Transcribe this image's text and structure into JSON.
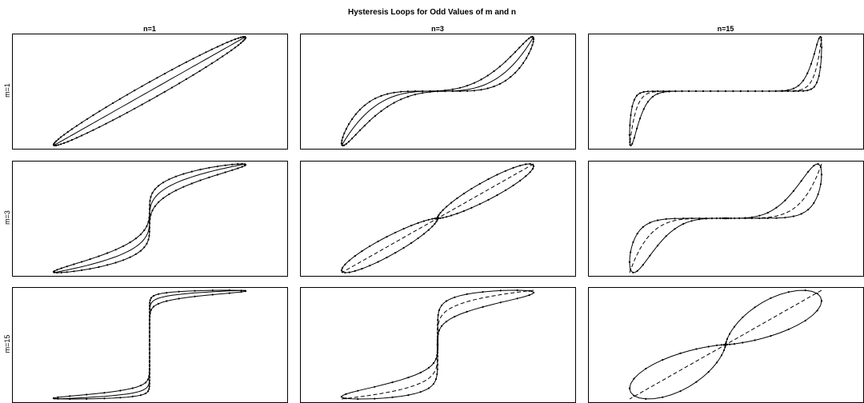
{
  "chart_data": {
    "type": "line",
    "title": "Hysteresis Loops for Odd Values of m and n",
    "column_labels": [
      "n=1",
      "n=3",
      "n=15"
    ],
    "row_labels": [
      "m=1",
      "m=3",
      "m=15"
    ],
    "n_values": [
      1,
      3,
      15
    ],
    "m_values": [
      1,
      3,
      15
    ],
    "xlim": [
      -1,
      1
    ],
    "ylim": [
      -1,
      1
    ],
    "grid": false,
    "legend": "none",
    "series": [
      {
        "role": "loop-upper",
        "style": "solid-with-point-markers"
      },
      {
        "role": "loop-lower",
        "style": "solid-with-point-markers"
      },
      {
        "role": "center-curve",
        "style": "solid-or-dashed"
      }
    ]
  }
}
